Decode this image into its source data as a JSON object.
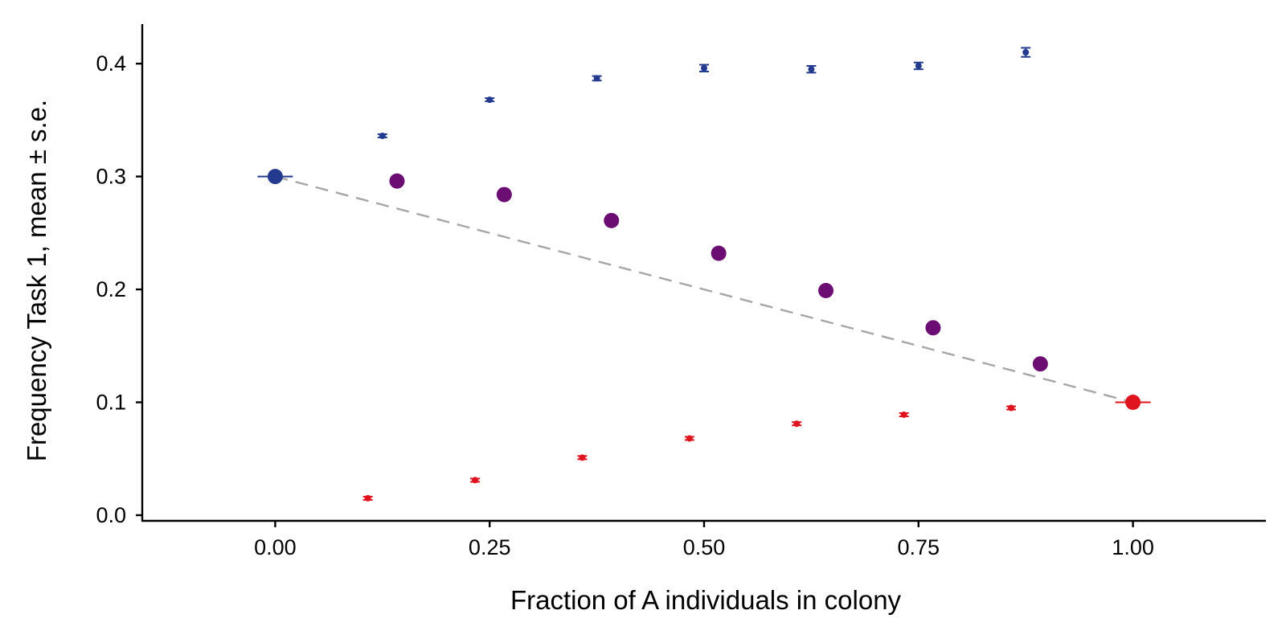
{
  "chart_data": {
    "type": "scatter",
    "title": "",
    "xlabel": "Fraction of A individuals in colony",
    "ylabel": "Frequency Task 1, mean ± s.e.",
    "xlim": [
      -0.155,
      1.155
    ],
    "ylim": [
      -0.005,
      0.435
    ],
    "x_ticks": [
      0,
      0.25,
      0.5,
      0.75,
      1
    ],
    "x_tick_labels": [
      "0.00",
      "0.25",
      "0.50",
      "0.75",
      "1.00"
    ],
    "y_ticks": [
      0,
      0.1,
      0.2,
      0.3,
      0.4
    ],
    "y_tick_labels": [
      "0.0",
      "0.1",
      "0.2",
      "0.3",
      "0.4"
    ],
    "grid": false,
    "reference_line": {
      "style": "dashed",
      "color": "#A6A6A6",
      "x": [
        0,
        1
      ],
      "y": [
        0.3,
        0.1
      ]
    },
    "series": [
      {
        "color": "#233A8F",
        "marker": "small-with-error",
        "points": [
          {
            "x": 0.125,
            "y": 0.336,
            "se": 0.001
          },
          {
            "x": 0.25,
            "y": 0.368,
            "se": 0.001
          },
          {
            "x": 0.375,
            "y": 0.387,
            "se": 0.002
          },
          {
            "x": 0.5,
            "y": 0.396,
            "se": 0.003
          },
          {
            "x": 0.625,
            "y": 0.395,
            "se": 0.003
          },
          {
            "x": 0.75,
            "y": 0.398,
            "se": 0.003
          },
          {
            "x": 0.875,
            "y": 0.41,
            "se": 0.004
          }
        ]
      },
      {
        "color": "#233A8F",
        "marker": "large-with-hbar",
        "points": [
          {
            "x": 0,
            "y": 0.3
          }
        ]
      },
      {
        "color": "#6B0D73",
        "marker": "large",
        "points": [
          {
            "x": 0.142,
            "y": 0.296
          },
          {
            "x": 0.267,
            "y": 0.284
          },
          {
            "x": 0.392,
            "y": 0.261
          },
          {
            "x": 0.517,
            "y": 0.232
          },
          {
            "x": 0.642,
            "y": 0.199
          },
          {
            "x": 0.767,
            "y": 0.166
          },
          {
            "x": 0.892,
            "y": 0.134
          }
        ]
      },
      {
        "color": "#E0141E",
        "marker": "small-with-error",
        "points": [
          {
            "x": 0.108,
            "y": 0.015,
            "se": 0.001
          },
          {
            "x": 0.233,
            "y": 0.031,
            "se": 0.001
          },
          {
            "x": 0.358,
            "y": 0.051,
            "se": 0.001
          },
          {
            "x": 0.483,
            "y": 0.068,
            "se": 0.001
          },
          {
            "x": 0.608,
            "y": 0.081,
            "se": 0.001
          },
          {
            "x": 0.733,
            "y": 0.089,
            "se": 0.001
          },
          {
            "x": 0.858,
            "y": 0.095,
            "se": 0.001
          }
        ]
      },
      {
        "color": "#E0141E",
        "marker": "large-with-hbar",
        "points": [
          {
            "x": 1,
            "y": 0.1
          }
        ]
      }
    ]
  }
}
